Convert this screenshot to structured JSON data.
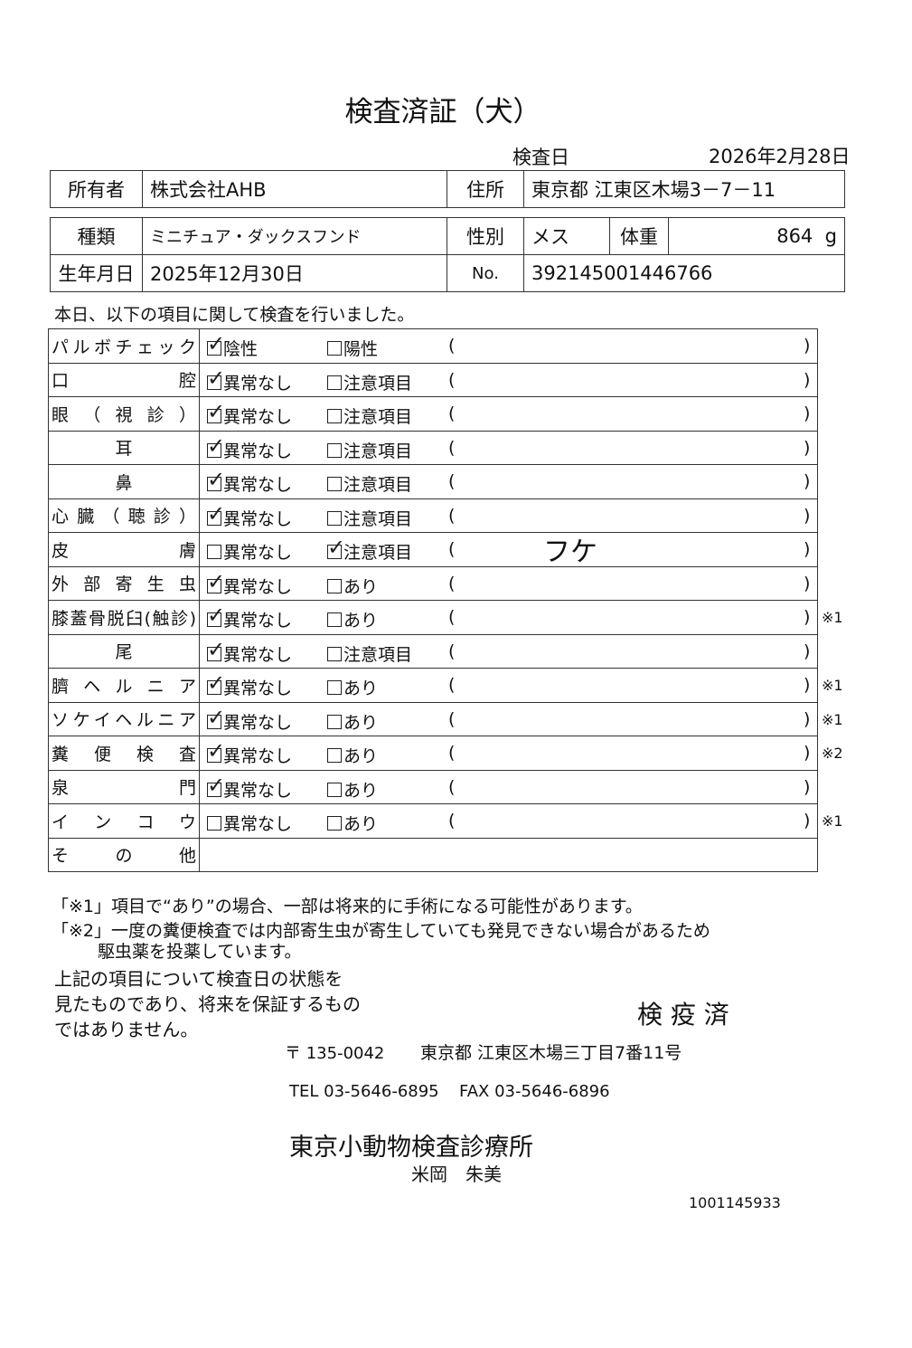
{
  "title": "検査済証（犬）",
  "exam_date_label": "検査日",
  "exam_date": "2026年2月28日",
  "owner_label": "所有者",
  "owner": "株式会社AHB",
  "address_label": "住所",
  "address": "東京都 江東区木場3－7－11",
  "kind_label": "種類",
  "kind": "ミニチュア・ダックスフンド",
  "sex_label": "性別",
  "sex": "メス",
  "weight_label": "体重",
  "weight": "864",
  "weight_unit": "g",
  "birth_label": "生年月日",
  "birth": "2025年12月30日",
  "no_label": "No.",
  "no": "392145001446766",
  "intro": "本日、以下の項目に関して検査を行いました。",
  "paren_open": "(",
  "paren_close": ")",
  "rows": [
    {
      "label": "パルボチェック",
      "opt1": "陰性",
      "opt2": "陽性",
      "checked": 1,
      "remark": "",
      "note": ""
    },
    {
      "label": "口腔",
      "opt1": "異常なし",
      "opt2": "注意項目",
      "checked": 1,
      "remark": "",
      "note": ""
    },
    {
      "label": "眼（視診）",
      "opt1": "異常なし",
      "opt2": "注意項目",
      "checked": 1,
      "remark": "",
      "note": ""
    },
    {
      "label": "耳",
      "opt1": "異常なし",
      "opt2": "注意項目",
      "checked": 1,
      "remark": "",
      "note": ""
    },
    {
      "label": "鼻",
      "opt1": "異常なし",
      "opt2": "注意項目",
      "checked": 1,
      "remark": "",
      "note": ""
    },
    {
      "label": "心臓（聴診）",
      "opt1": "異常なし",
      "opt2": "注意項目",
      "checked": 1,
      "remark": "",
      "note": ""
    },
    {
      "label": "皮膚",
      "opt1": "異常なし",
      "opt2": "注意項目",
      "checked": 2,
      "remark": "フケ",
      "note": ""
    },
    {
      "label": "外部寄生虫",
      "opt1": "異常なし",
      "opt2": "あり",
      "checked": 1,
      "remark": "",
      "note": ""
    },
    {
      "label": "膝蓋骨脱臼(触診)",
      "opt1": "異常なし",
      "opt2": "あり",
      "checked": 1,
      "remark": "",
      "note": "※1"
    },
    {
      "label": "尾",
      "opt1": "異常なし",
      "opt2": "注意項目",
      "checked": 1,
      "remark": "",
      "note": ""
    },
    {
      "label": "臍ヘルニア",
      "opt1": "異常なし",
      "opt2": "あり",
      "checked": 1,
      "remark": "",
      "note": "※1"
    },
    {
      "label": "ソケイヘルニア",
      "opt1": "異常なし",
      "opt2": "あり",
      "checked": 1,
      "remark": "",
      "note": "※1"
    },
    {
      "label": "糞便検査",
      "opt1": "異常なし",
      "opt2": "あり",
      "checked": 1,
      "remark": "",
      "note": "※2"
    },
    {
      "label": "泉門",
      "opt1": "異常なし",
      "opt2": "あり",
      "checked": 1,
      "remark": "",
      "note": ""
    },
    {
      "label": "インコウ",
      "opt1": "異常なし",
      "opt2": "あり",
      "checked": 0,
      "remark": "",
      "note": "※1"
    }
  ],
  "other_label": "その他",
  "footnote1": "「※1」項目で“あり”の場合、一部は将来的に手術になる可能性があります。",
  "footnote2a": "「※2」一度の糞便検査では内部寄生虫が寄生していても発見できない場合があるため",
  "footnote2b": "駆虫薬を投薬しています。",
  "disclaimer": [
    "上記の項目について検査日の状態を",
    "見たものであり、将来を保証するもの",
    "ではありません。"
  ],
  "stamp": "検 疫 済",
  "postal": "〒 135-0042",
  "clinic_address": "東京都 江東区木場三丁目7番11号",
  "tel": "TEL 03-5646-6895",
  "fax": "FAX 03-5646-6896",
  "clinic_name": "東京小動物検査診療所",
  "vet_name": "米岡　朱美",
  "doc_number": "1001145933"
}
